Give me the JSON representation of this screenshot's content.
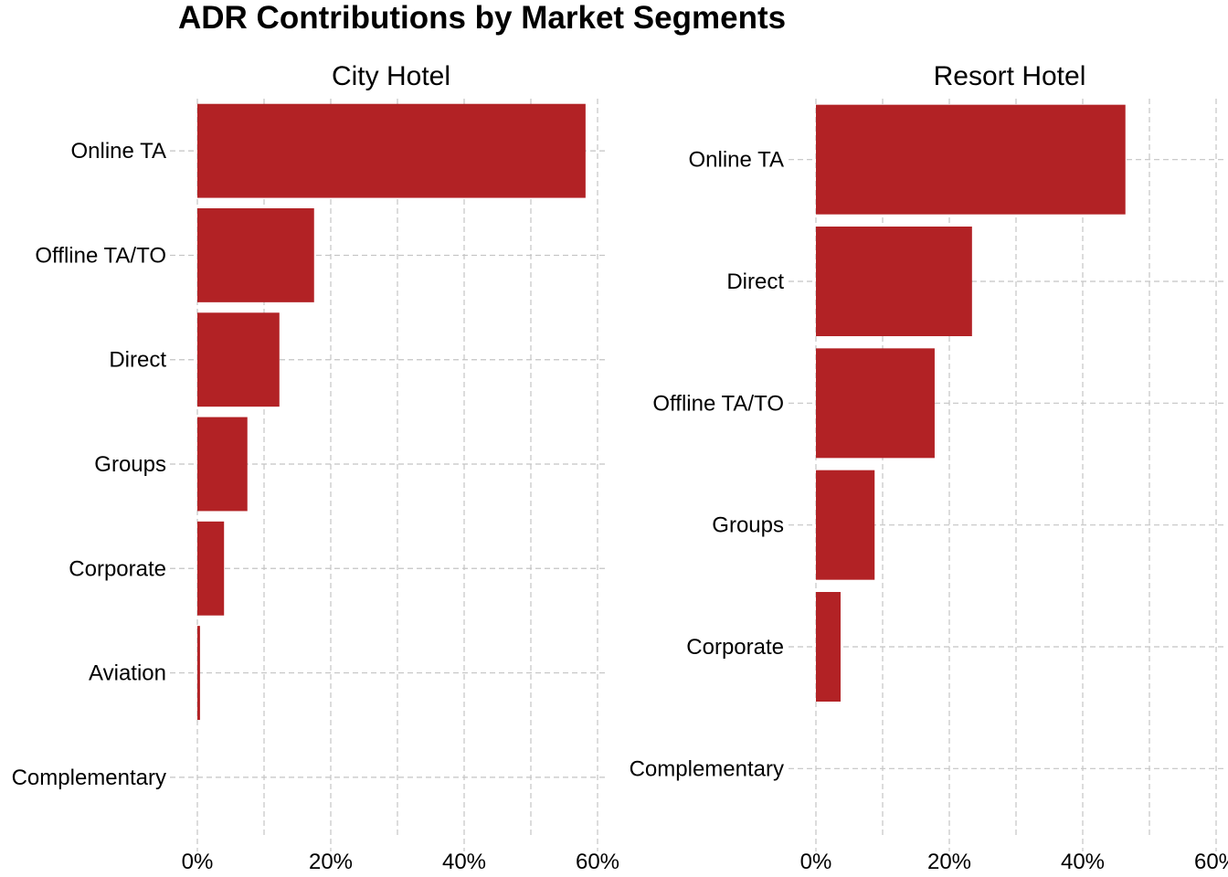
{
  "chart_data": {
    "type": "bar",
    "orientation": "horizontal",
    "title": "ADR Contributions by Market Segments",
    "xlabel": "",
    "ylabel": "",
    "xlim": [
      0,
      60
    ],
    "x_ticks": [
      "0%",
      "20%",
      "40%",
      "60%"
    ],
    "grid": true,
    "bar_color": "#b22225",
    "panels": [
      {
        "name": "City Hotel",
        "categories": [
          "Online TA",
          "Offline TA/TO",
          "Direct",
          "Groups",
          "Corporate",
          "Aviation",
          "Complementary"
        ],
        "values": [
          58.2,
          17.5,
          12.3,
          7.5,
          4.0,
          0.4,
          0.0
        ]
      },
      {
        "name": "Resort Hotel",
        "categories": [
          "Online TA",
          "Direct",
          "Offline TA/TO",
          "Groups",
          "Corporate",
          "Complementary"
        ],
        "values": [
          46.4,
          23.4,
          17.8,
          8.8,
          3.7,
          0.0
        ]
      }
    ]
  }
}
